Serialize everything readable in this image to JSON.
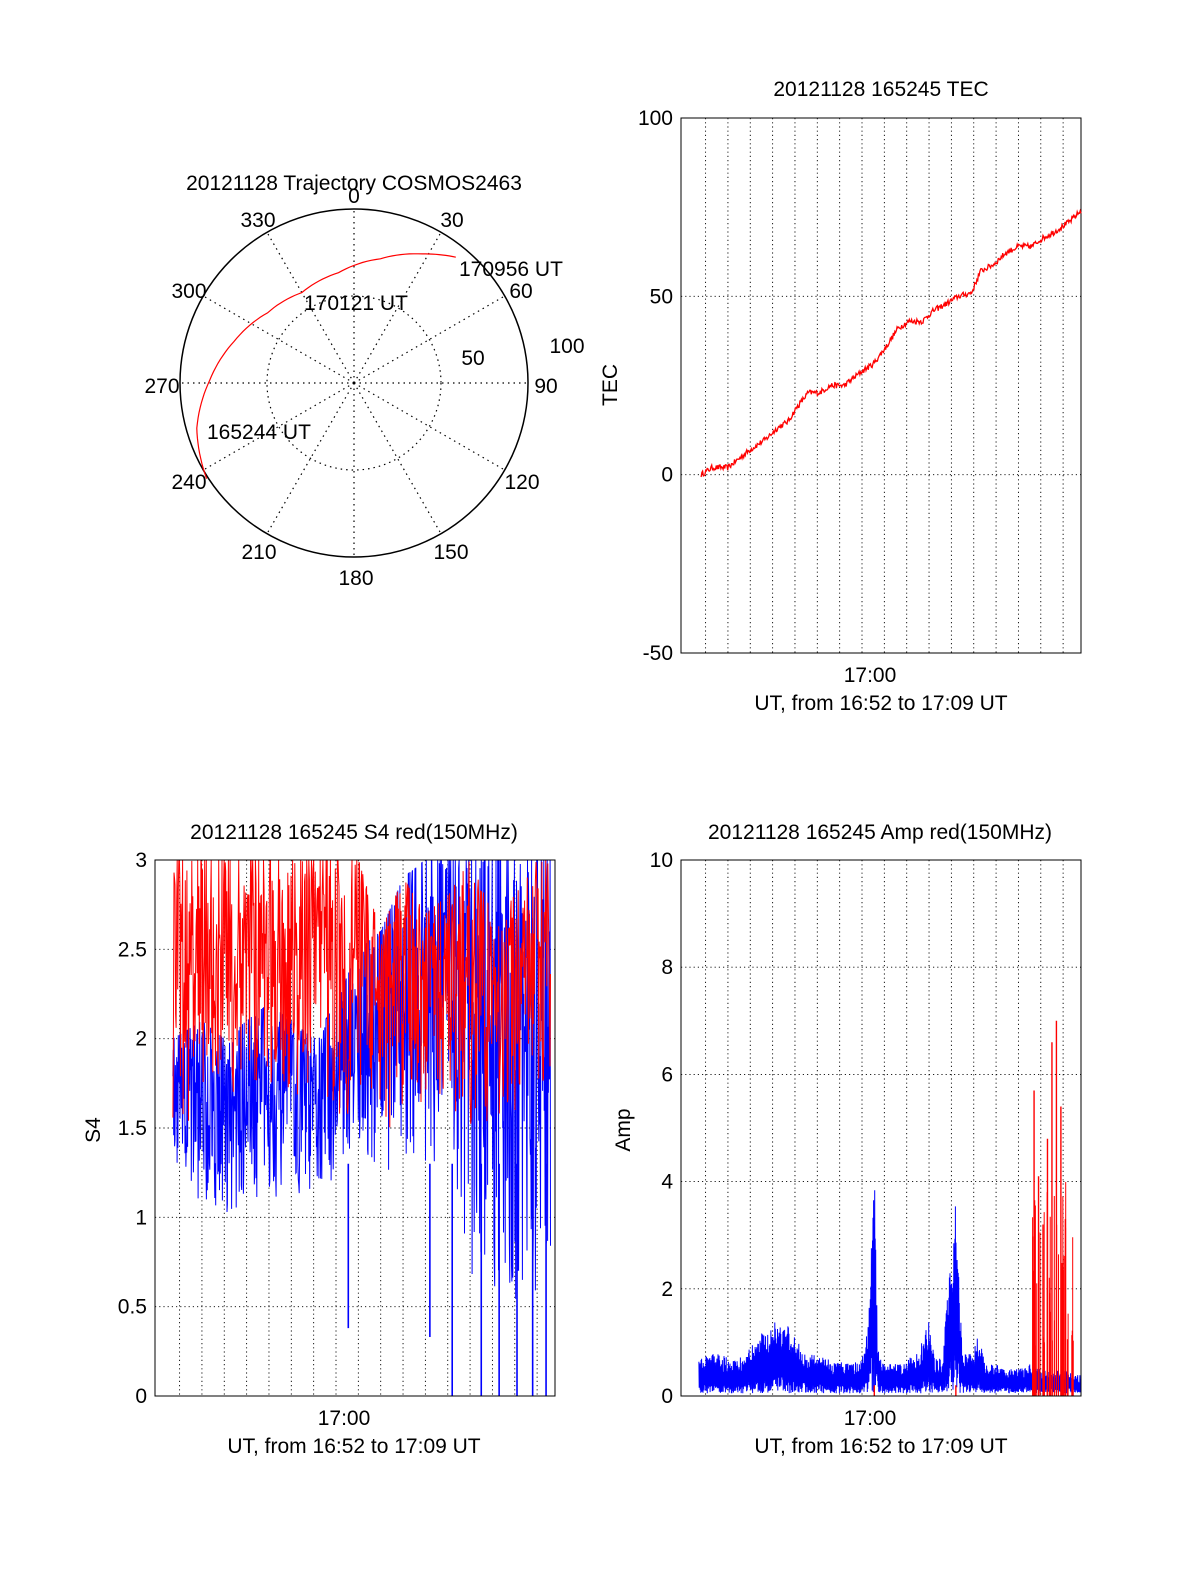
{
  "colors": {
    "red_series": "#ff0000",
    "blue_series": "#0000ff",
    "axis": "#000000",
    "grid": "#000000"
  },
  "chart_data": [
    {
      "id": "trajectory",
      "type": "polar",
      "title": "20121128 Trajectory COSMOS2463",
      "angle_labels": [
        "0",
        "30",
        "60",
        "90",
        "120",
        "150",
        "180",
        "210",
        "240",
        "270",
        "300",
        "330"
      ],
      "radial_labels": [
        "50",
        "100"
      ],
      "grid": true,
      "track": {
        "points": [
          {
            "az": 237,
            "r": 101
          },
          {
            "az": 254,
            "r": 94
          },
          {
            "az": 271,
            "r": 83
          },
          {
            "az": 289,
            "r": 73
          },
          {
            "az": 309,
            "r": 64
          },
          {
            "az": 330,
            "r": 60
          },
          {
            "az": 352,
            "r": 64
          },
          {
            "az": 12,
            "r": 73
          },
          {
            "az": 28,
            "r": 84
          },
          {
            "az": 39,
            "r": 93
          }
        ]
      },
      "annotations": [
        "170956 UT",
        "170121 UT",
        "165244 UT"
      ]
    },
    {
      "id": "tec",
      "type": "line",
      "title": "20121128 165245 TEC",
      "ylabel": "TEC",
      "xlabel": "UT, from 16:52 to 17:09 UT",
      "xlim_min": [
        -8.1,
        9.8
      ],
      "ylim": [
        -50,
        100
      ],
      "yticks": [
        "100",
        "50",
        "0",
        "-50"
      ],
      "xtick_label": "17:00",
      "grid": true,
      "series": [
        {
          "color": "#ff0000",
          "x": [
            -7.2,
            -6.7,
            -6.0,
            -5.4,
            -5.0,
            -4.3,
            -3.8,
            -3.3,
            -2.9,
            -2.4,
            -1.9,
            -1.4,
            -0.8,
            0.0,
            0.5,
            1.1,
            1.6,
            2.1,
            2.7,
            3.2,
            3.8,
            4.3,
            4.9,
            5.3,
            5.9,
            6.4,
            7.0,
            7.6,
            8.0,
            8.6,
            9.3,
            9.8
          ],
          "y": [
            0,
            2,
            2,
            5,
            7,
            10,
            13,
            15,
            19,
            23,
            23,
            25,
            25,
            29,
            31,
            36,
            41,
            43,
            43,
            46,
            48,
            50,
            51,
            57,
            59,
            62,
            64,
            64,
            66,
            68,
            71,
            74
          ]
        }
      ]
    },
    {
      "id": "s4",
      "type": "line",
      "title": "20121128 165245 S4 red(150MHz)",
      "ylabel": "S4",
      "xlabel": "UT, from 16:52 to 17:09 UT",
      "xlim_min": [
        -8.1,
        9.8
      ],
      "ylim": [
        0,
        3
      ],
      "yticks": [
        "3",
        "2.5",
        "2",
        "1.5",
        "1",
        "0.5",
        "0"
      ],
      "xtick_label": "17:00",
      "grid": true,
      "series": [
        {
          "color": "#0000ff",
          "band": {
            "x": [
              -7.3,
              -6.0,
              -5.0,
              -4.0,
              -3.0,
              -2.0,
              -1.0,
              0.0,
              1.0,
              2.0,
              3.0,
              4.0,
              5.0,
              6.0,
              7.0,
              8.0,
              9.0,
              9.6
            ],
            "lo": [
              1.0,
              1.1,
              1.0,
              1.05,
              1.1,
              1.15,
              1.1,
              1.2,
              1.3,
              1.3,
              1.2,
              1.2,
              1.1,
              0.6,
              0.3,
              0.3,
              0.5,
              0.5
            ],
            "hi": [
              2.0,
              2.1,
              2.0,
              2.1,
              2.2,
              2.1,
              2.0,
              2.2,
              2.5,
              2.6,
              2.9,
              3.0,
              3.0,
              3.0,
              3.0,
              3.0,
              3.0,
              3.0
            ]
          },
          "dips": [
            {
              "x": 0.55,
              "y": 0.38
            },
            {
              "x": 4.2,
              "y": 0.33
            },
            {
              "x": 5.2,
              "y": 0.0
            },
            {
              "x": 6.5,
              "y": 0.0
            },
            {
              "x": 7.3,
              "y": 0.0
            },
            {
              "x": 8.1,
              "y": 0.0
            },
            {
              "x": 8.8,
              "y": 0.0
            },
            {
              "x": 9.4,
              "y": 0.0
            }
          ]
        },
        {
          "color": "#ff0000",
          "band": {
            "x": [
              -7.3,
              -6.0,
              -5.0,
              -4.0,
              -3.0,
              -2.0,
              -1.0,
              0.0,
              1.0,
              2.0,
              3.0,
              4.0,
              5.0,
              6.0,
              7.0,
              8.0,
              9.0,
              9.6
            ],
            "lo": [
              1.5,
              1.55,
              1.6,
              1.6,
              1.7,
              1.7,
              1.6,
              1.6,
              1.45,
              1.45,
              1.5,
              1.6,
              1.6,
              1.5,
              1.5,
              1.6,
              1.7,
              1.7
            ],
            "hi": [
              3.0,
              3.0,
              3.0,
              3.0,
              3.0,
              3.0,
              3.0,
              3.0,
              3.0,
              2.6,
              2.9,
              2.7,
              2.8,
              3.0,
              2.7,
              2.8,
              3.0,
              3.0
            ]
          }
        }
      ]
    },
    {
      "id": "amp",
      "type": "line",
      "title": "20121128 165245 Amp red(150MHz)",
      "ylabel": "Amp",
      "xlabel": "UT, from 16:52 to 17:09 UT",
      "xlim_min": [
        -8.1,
        9.8
      ],
      "ylim": [
        0,
        10
      ],
      "yticks": [
        "10",
        "8",
        "6",
        "4",
        "2",
        "0"
      ],
      "xtick_label": "17:00",
      "grid": true,
      "series": [
        {
          "color": "#0000ff",
          "envelope": {
            "x": [
              -7.3,
              -6.5,
              -5.5,
              -4.8,
              -4.3,
              -3.8,
              -3.3,
              -2.5,
              -1.5,
              -0.5,
              0.0,
              0.3,
              0.5,
              0.55,
              0.7,
              0.8,
              1.0,
              1.5,
              2.5,
              3.0,
              3.3,
              3.6,
              4.0,
              4.2,
              4.5,
              4.9,
              5.2,
              5.5,
              6.0,
              6.5,
              7.0,
              7.5,
              8.0,
              8.5,
              9.0,
              9.5,
              9.8
            ],
            "hi": [
              0.7,
              0.8,
              0.7,
              1.0,
              1.3,
              1.4,
              1.3,
              0.8,
              0.7,
              0.6,
              0.7,
              1.5,
              4.5,
              4.3,
              1.0,
              0.7,
              0.6,
              0.6,
              0.8,
              1.4,
              0.7,
              0.7,
              3.0,
              3.6,
              0.8,
              0.8,
              1.2,
              0.6,
              0.6,
              0.5,
              0.5,
              0.6,
              0.5,
              0.5,
              0.5,
              0.4,
              0.4
            ],
            "lo": [
              0.05,
              0.05,
              0.05,
              0.05,
              0.05,
              0.05,
              0.05,
              0.05,
              0.05,
              0.05,
              0.05,
              0.05,
              0.05,
              0.05,
              0.05,
              0.05,
              0.05,
              0.05,
              0.05,
              0.05,
              0.05,
              0.05,
              0.05,
              0.05,
              0.05,
              0.05,
              0.05,
              0.05,
              0.05,
              0.05,
              0.05,
              0.05,
              0.05,
              0.05,
              0.05,
              0.05,
              0.05
            ]
          }
        },
        {
          "color": "#ff0000",
          "spikes": [
            {
              "x": 7.7,
              "y": 5.7
            },
            {
              "x": 7.9,
              "y": 4.1
            },
            {
              "x": 8.1,
              "y": 3.2
            },
            {
              "x": 8.3,
              "y": 4.8
            },
            {
              "x": 8.5,
              "y": 6.6
            },
            {
              "x": 8.7,
              "y": 7.0
            },
            {
              "x": 8.9,
              "y": 5.4
            },
            {
              "x": 9.1,
              "y": 3.3
            },
            {
              "x": 0.55,
              "y": 0.2
            },
            {
              "x": 4.2,
              "y": 0.2
            }
          ]
        }
      ]
    }
  ]
}
